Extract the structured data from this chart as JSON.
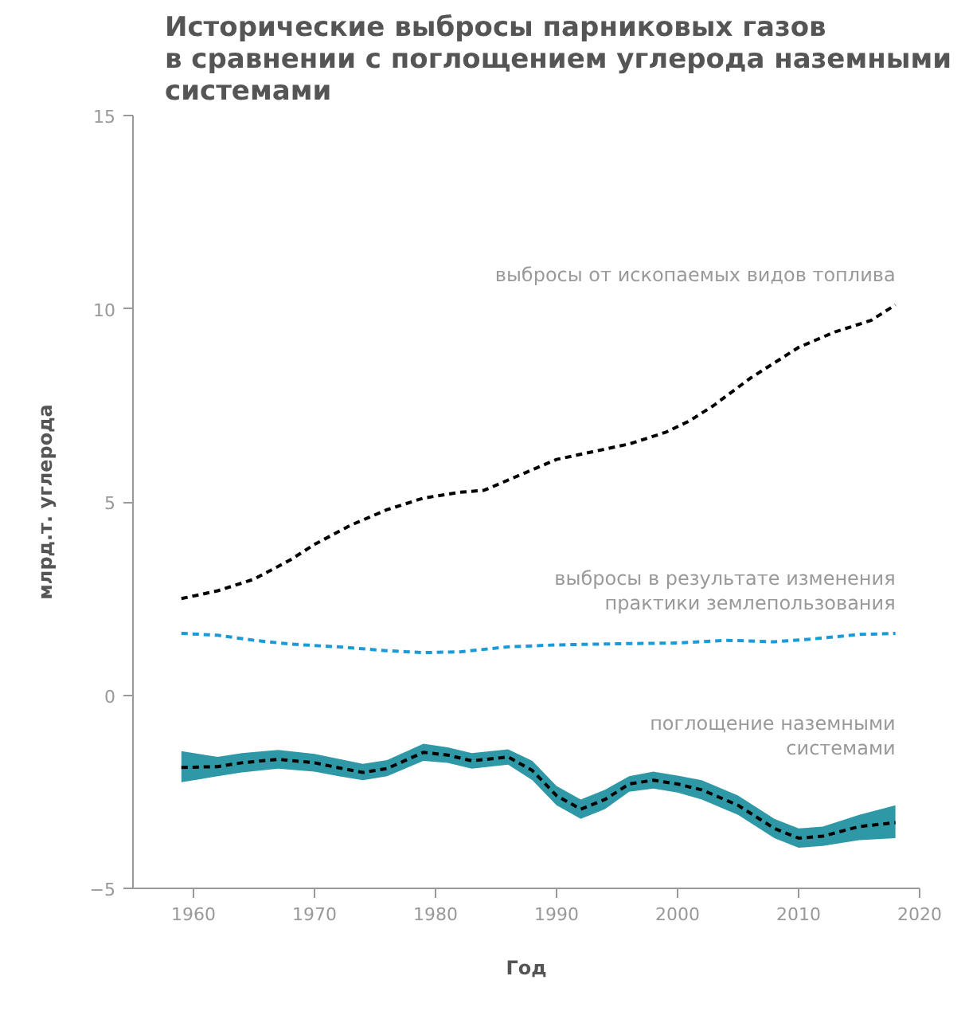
{
  "chart_data": {
    "type": "line",
    "title": "Исторические выбросы парниковых газов\nв сравнении с поглощением углерода наземными\nсистемами",
    "xlabel": "Год",
    "ylabel": "млрд.т. углерода",
    "xlim": [
      1955,
      2020
    ],
    "xticks": [
      1960,
      1970,
      1980,
      1990,
      2000,
      2010,
      2020
    ],
    "ylim": [
      -5,
      15
    ],
    "yticks": [
      -5,
      0,
      5,
      10,
      15
    ],
    "grid": false,
    "line_style": "dashed",
    "series": [
      {
        "name": "выбросы от ископаемых видов топлива",
        "color": "#000000",
        "x": [
          1959,
          1962,
          1965,
          1968,
          1970,
          1973,
          1976,
          1979,
          1982,
          1984,
          1987,
          1990,
          1993,
          1996,
          1999,
          2001,
          2003,
          2006,
          2008,
          2010,
          2013,
          2016,
          2018
        ],
        "values": [
          2.5,
          2.7,
          3.0,
          3.5,
          3.9,
          4.4,
          4.8,
          5.1,
          5.25,
          5.3,
          5.7,
          6.1,
          6.3,
          6.5,
          6.8,
          7.1,
          7.5,
          8.2,
          8.6,
          9.0,
          9.4,
          9.7,
          10.1
        ]
      },
      {
        "name": "выбросы в результате изменения\nпрактики землепользования",
        "color": "#1a9ad6",
        "x": [
          1959,
          1962,
          1965,
          1968,
          1972,
          1976,
          1979,
          1982,
          1986,
          1990,
          1995,
          2000,
          2004,
          2008,
          2011,
          2015,
          2018
        ],
        "values": [
          1.6,
          1.55,
          1.42,
          1.32,
          1.25,
          1.15,
          1.1,
          1.12,
          1.25,
          1.3,
          1.33,
          1.35,
          1.42,
          1.38,
          1.45,
          1.57,
          1.6
        ]
      },
      {
        "name": "поглощение наземными\nсистемами",
        "color": "#000000",
        "x": [
          1959,
          1962,
          1964,
          1967,
          1970,
          1972,
          1974,
          1976,
          1979,
          1981,
          1983,
          1986,
          1988,
          1990,
          1992,
          1994,
          1996,
          1998,
          2000,
          2002,
          2005,
          2008,
          2010,
          2012,
          2015,
          2018
        ],
        "values": [
          -1.87,
          -1.85,
          -1.75,
          -1.66,
          -1.75,
          -1.88,
          -2.0,
          -1.9,
          -1.48,
          -1.55,
          -1.7,
          -1.6,
          -1.95,
          -2.6,
          -2.95,
          -2.7,
          -2.3,
          -2.2,
          -2.3,
          -2.45,
          -2.85,
          -3.45,
          -3.7,
          -3.65,
          -3.4,
          -3.3
        ],
        "lower": [
          -2.25,
          -2.1,
          -2.0,
          -1.9,
          -1.98,
          -2.1,
          -2.2,
          -2.1,
          -1.7,
          -1.75,
          -1.9,
          -1.8,
          -2.2,
          -2.85,
          -3.2,
          -2.95,
          -2.5,
          -2.42,
          -2.52,
          -2.7,
          -3.1,
          -3.7,
          -3.95,
          -3.9,
          -3.75,
          -3.7
        ],
        "upper": [
          -1.45,
          -1.6,
          -1.5,
          -1.42,
          -1.52,
          -1.65,
          -1.78,
          -1.68,
          -1.26,
          -1.35,
          -1.5,
          -1.4,
          -1.7,
          -2.35,
          -2.7,
          -2.45,
          -2.1,
          -1.98,
          -2.08,
          -2.2,
          -2.6,
          -3.2,
          -3.45,
          -3.4,
          -3.1,
          -2.85
        ]
      }
    ]
  }
}
